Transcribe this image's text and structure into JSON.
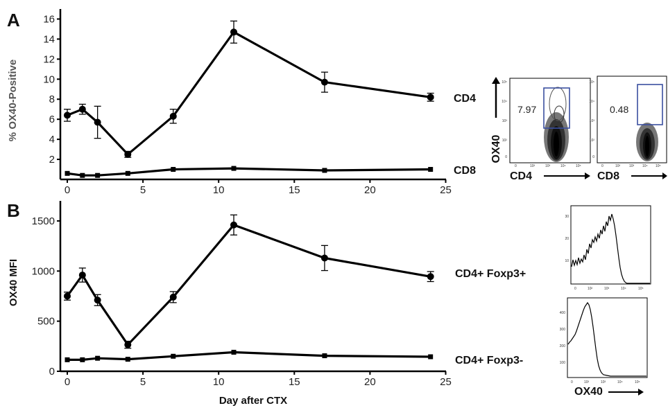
{
  "chart_data": [
    {
      "type": "line",
      "panel": "A",
      "ylabel": "% OX40-Positive",
      "xlabel": "",
      "xlim": [
        0,
        25
      ],
      "ylim": [
        0,
        17
      ],
      "xticks": [
        "0",
        "5",
        "10",
        "15",
        "20",
        "25"
      ],
      "yticks": [
        "2",
        "4",
        "6",
        "8",
        "10",
        "12",
        "14",
        "16"
      ],
      "x": [
        0,
        1,
        2,
        4,
        7,
        11,
        17,
        24
      ],
      "series": [
        {
          "name": "CD4",
          "marker": "circle",
          "values": [
            6.4,
            7.0,
            5.7,
            2.5,
            6.3,
            14.7,
            9.7,
            8.2
          ],
          "errors": [
            0.6,
            0.5,
            1.6,
            0.3,
            0.7,
            1.1,
            1.0,
            0.4
          ]
        },
        {
          "name": "CD8",
          "marker": "square",
          "values": [
            0.6,
            0.4,
            0.4,
            0.6,
            1.0,
            1.1,
            0.9,
            1.0
          ],
          "errors": [
            0,
            0,
            0,
            0,
            0,
            0,
            0,
            0
          ]
        }
      ]
    },
    {
      "type": "line",
      "panel": "B",
      "ylabel": "OX40 MFI",
      "xlabel": "Day after CTX",
      "xlim": [
        0,
        25
      ],
      "ylim": [
        0,
        1700
      ],
      "xticks": [
        "0",
        "5",
        "10",
        "15",
        "20",
        "25"
      ],
      "yticks": [
        "0",
        "500",
        "1000",
        "1500"
      ],
      "x": [
        0,
        1,
        2,
        4,
        7,
        11,
        17,
        24
      ],
      "series": [
        {
          "name": "CD4+ Foxp3+",
          "marker": "circle",
          "values": [
            750,
            960,
            710,
            265,
            740,
            1460,
            1130,
            945
          ],
          "errors": [
            40,
            70,
            55,
            35,
            55,
            100,
            125,
            50
          ]
        },
        {
          "name": "CD4+ Foxp3-",
          "marker": "square",
          "values": [
            115,
            115,
            130,
            120,
            150,
            190,
            155,
            145
          ],
          "errors": [
            0,
            0,
            0,
            0,
            0,
            0,
            0,
            0
          ]
        }
      ]
    }
  ],
  "flow_plots": [
    {
      "xlabel": "CD4",
      "ylabel": "OX40",
      "gate_value": "7.97",
      "yticks": [
        "10⁵",
        "10⁴",
        "10³",
        "10²",
        "0"
      ],
      "xticks": [
        "0",
        "10²",
        "10³",
        "10⁴",
        "10⁵"
      ]
    },
    {
      "xlabel": "CD8",
      "gate_value": "0.48",
      "yticks": [
        "10⁵",
        "10⁴",
        "10³",
        "10²",
        "0"
      ],
      "xticks": [
        "0",
        "10²",
        "10³",
        "10⁴",
        "10⁵"
      ]
    }
  ],
  "histograms": [
    {
      "yticks": [
        "30",
        "20",
        "10"
      ],
      "xticks": [
        "0",
        "10²",
        "10³",
        "10⁴",
        "10⁵"
      ]
    },
    {
      "yticks": [
        "400",
        "300",
        "200",
        "100"
      ],
      "xticks": [
        "0",
        "10²",
        "10³",
        "10⁴",
        "10⁵"
      ],
      "xlabel": "OX40"
    }
  ]
}
